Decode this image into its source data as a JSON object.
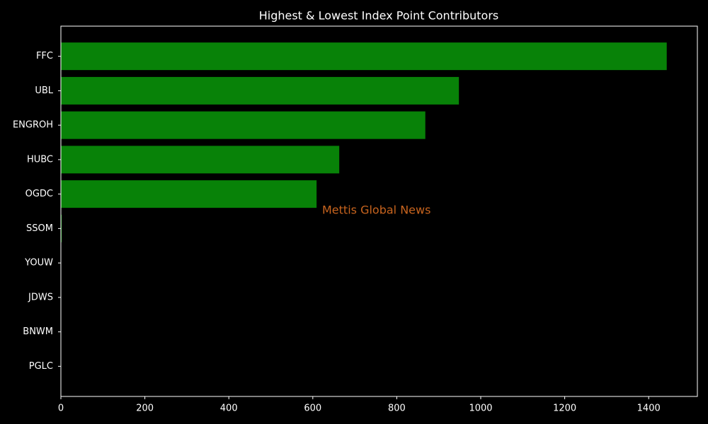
{
  "chart_data": {
    "type": "barh",
    "title": "Highest & Lowest Index Point Contributors",
    "categories": [
      "FFC",
      "UBL",
      "ENGROH",
      "HUBC",
      "OGDC",
      "SSOM",
      "YOUW",
      "JDWS",
      "BNWM",
      "PGLC"
    ],
    "values": [
      1443,
      948,
      868,
      663,
      609,
      2,
      0,
      0,
      0,
      0
    ],
    "color": "#088208",
    "xlim": [
      0,
      1516
    ],
    "xticks": [
      0,
      200,
      400,
      600,
      800,
      1000,
      1200,
      1400
    ],
    "annotation": "Mettis Global News",
    "annotation_color": "#c8641e"
  }
}
